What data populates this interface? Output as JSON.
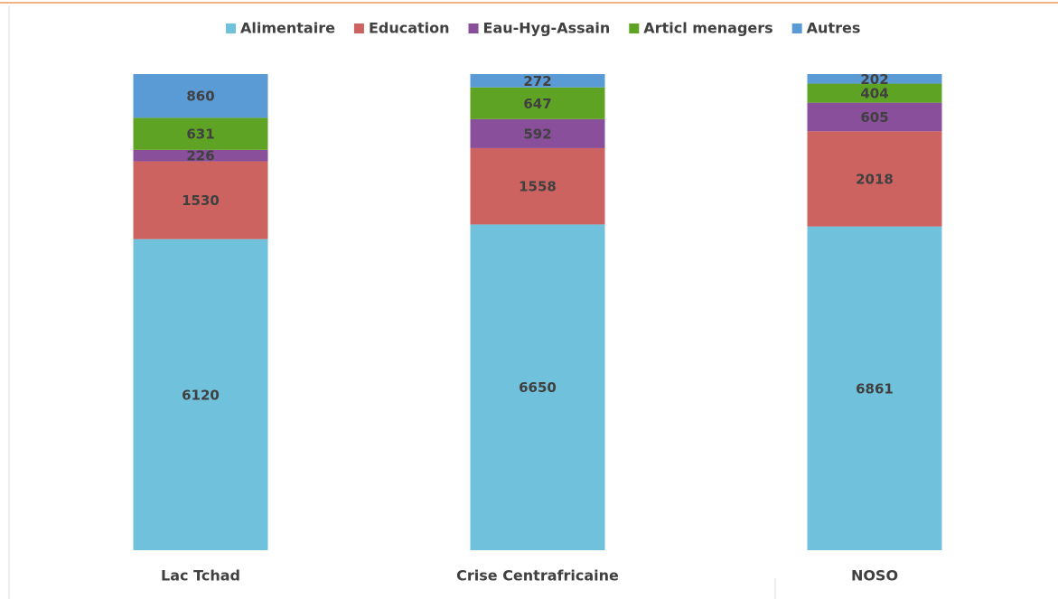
{
  "chart_data": {
    "type": "bar",
    "stacked": "percent",
    "categories": [
      "Lac Tchad",
      "Crise Centrafricaine",
      "NOSO"
    ],
    "series": [
      {
        "name": "Alimentaire",
        "color": "#70c1dc",
        "values": [
          6120,
          6650,
          6861
        ]
      },
      {
        "name": "Education",
        "color": "#cd6360",
        "values": [
          1530,
          1558,
          2018
        ]
      },
      {
        "name": "Eau-Hyg-Assain",
        "color": "#8a4f9a",
        "values": [
          226,
          592,
          605
        ]
      },
      {
        "name": "Articl menagers",
        "color": "#5fa324",
        "values": [
          631,
          647,
          404
        ]
      },
      {
        "name": "Autres",
        "color": "#5b9bd5",
        "values": [
          860,
          272,
          202
        ]
      }
    ],
    "legend": "top"
  }
}
